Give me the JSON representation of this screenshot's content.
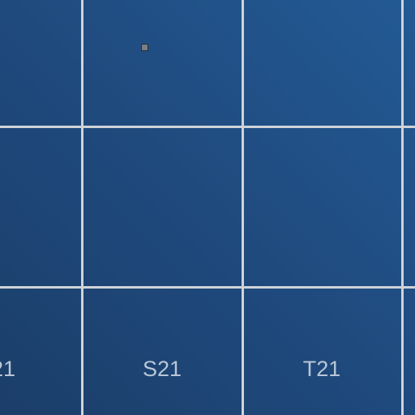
{
  "map": {
    "grid_labels": {
      "left_partial": "21",
      "center": "S21",
      "right": "T21"
    },
    "marker": {
      "icon": "square-marker-icon",
      "color": "#7b7f84"
    },
    "colors": {
      "background_start": "#235a94",
      "background_end": "#1b3e69",
      "grid_line": "#cfd3d8",
      "label_text": "#b9c6d6"
    }
  }
}
